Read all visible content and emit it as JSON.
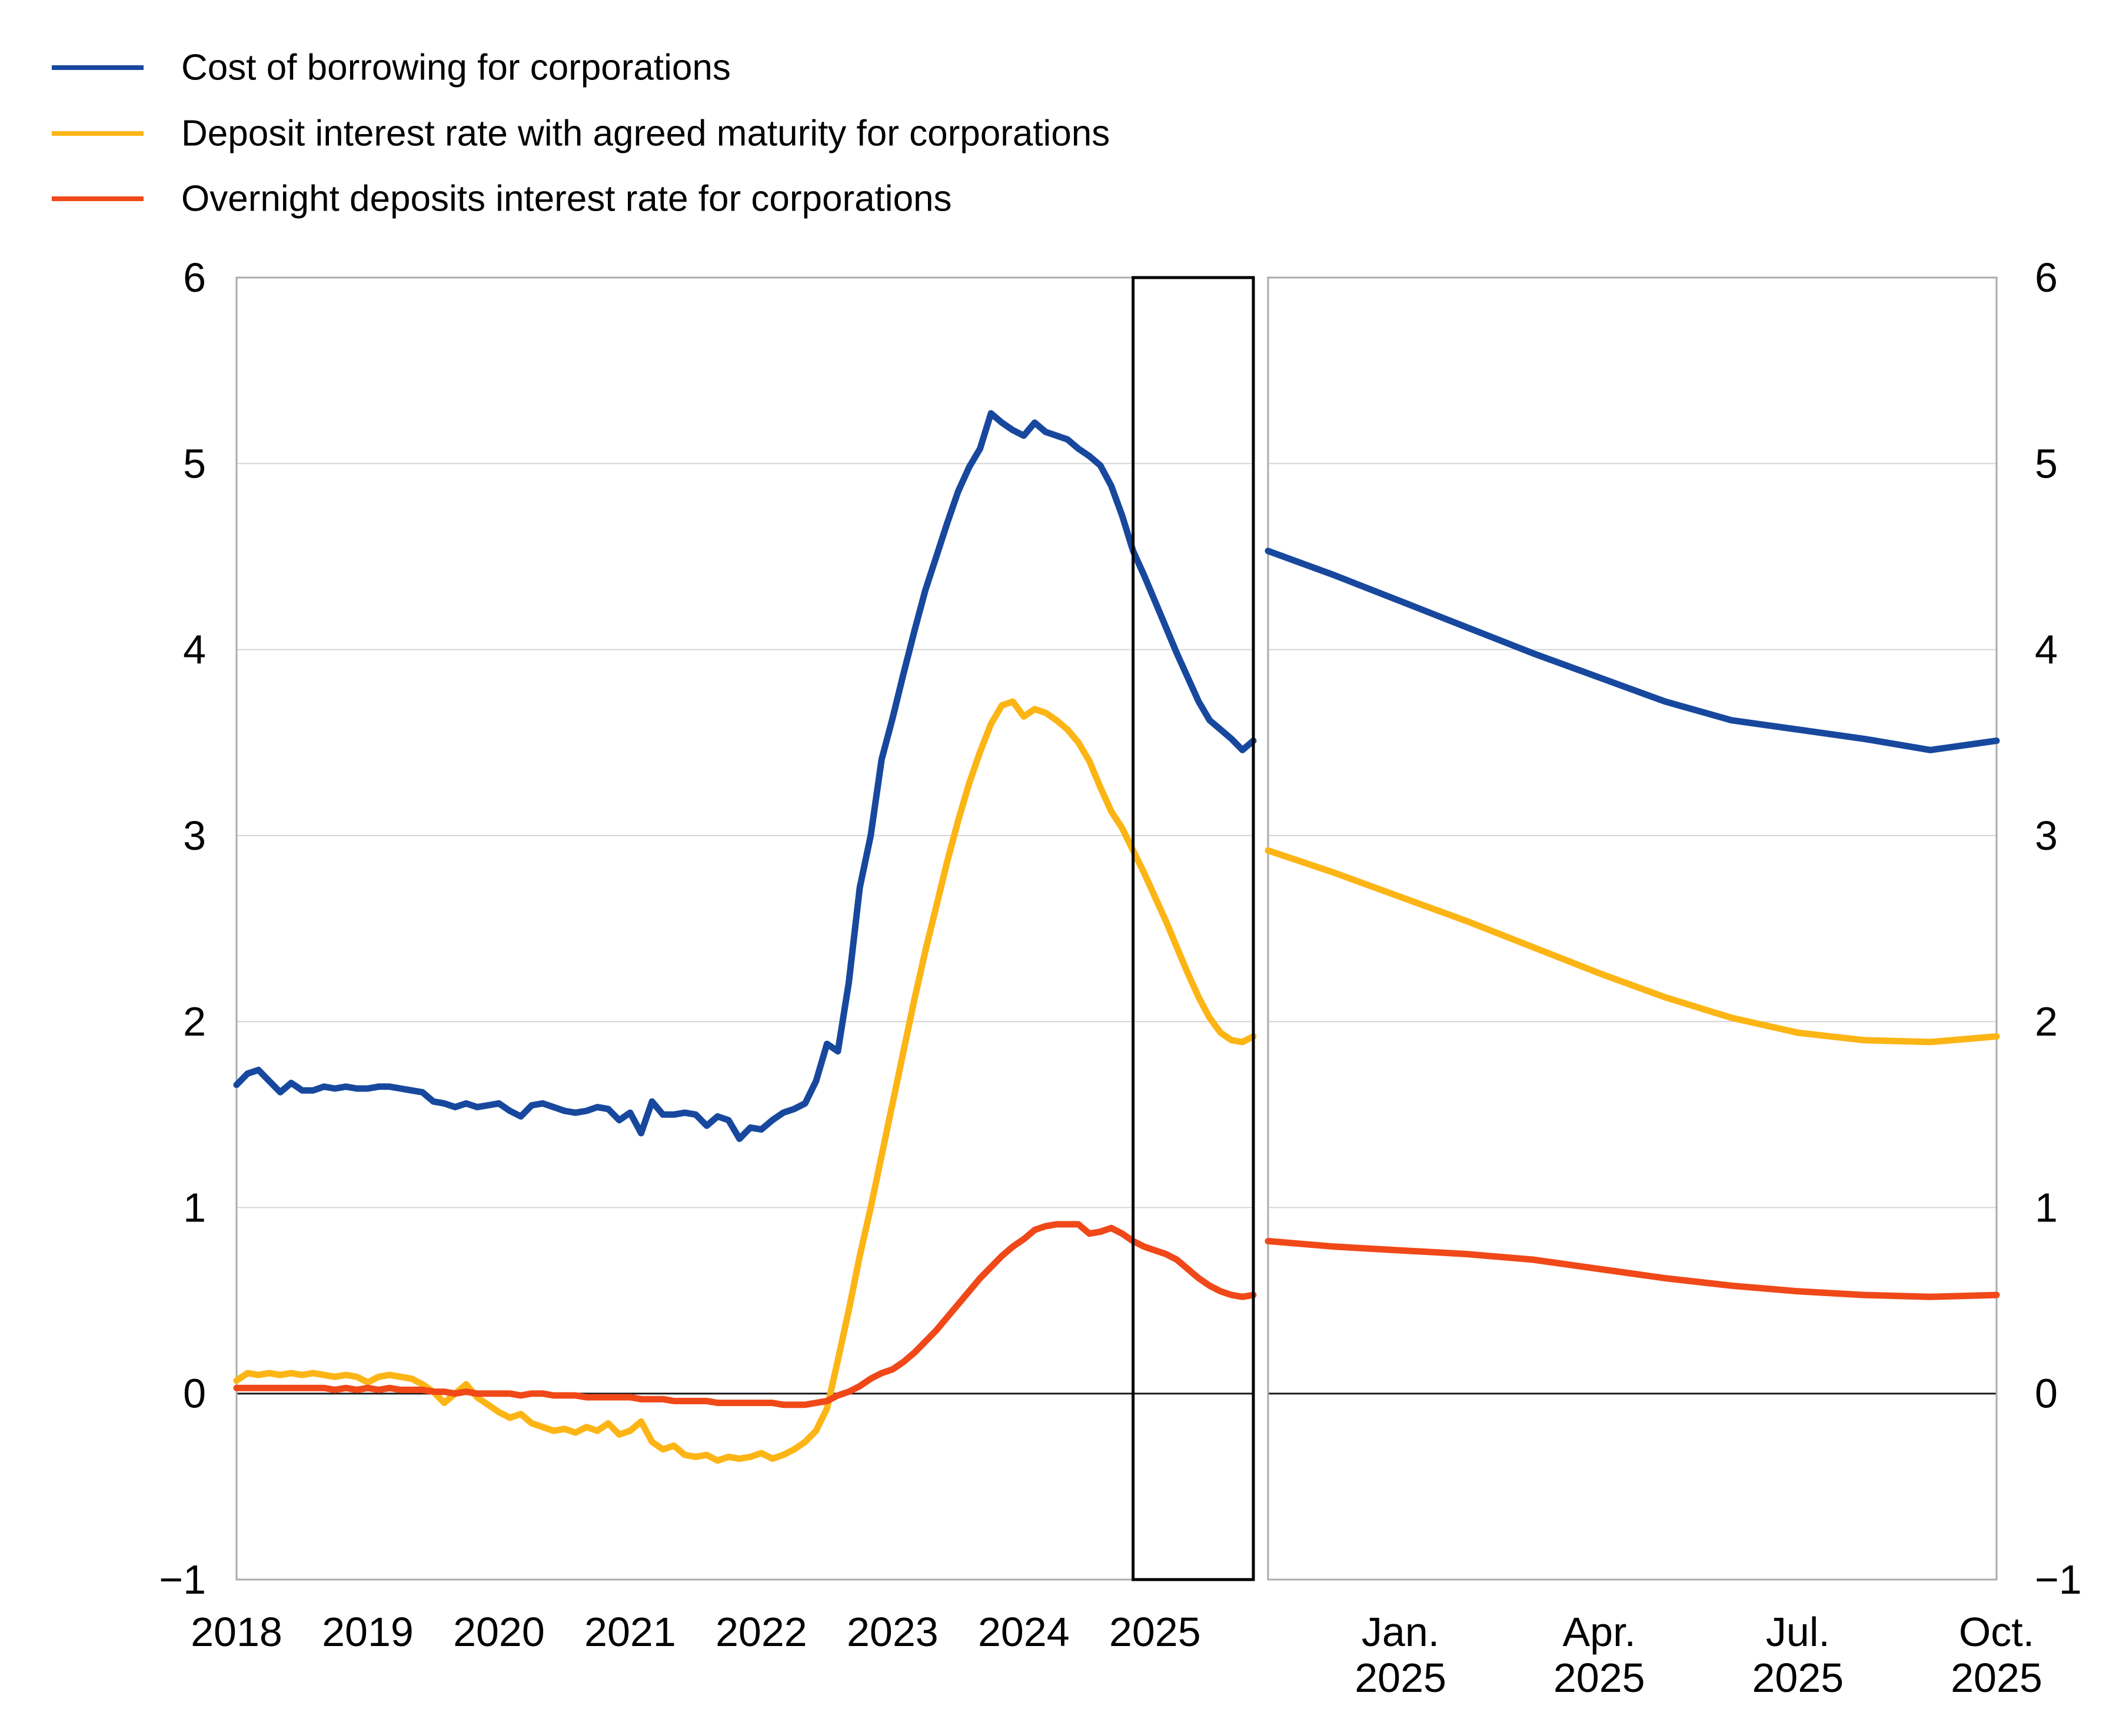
{
  "legend": {
    "items": [
      {
        "label": "Cost of borrowing for corporations",
        "color": "#17489e"
      },
      {
        "label": "Deposit interest rate with agreed maturity for corporations",
        "color": "#fcb515"
      },
      {
        "label": "Overnight deposits interest rate for corporations",
        "color": "#f04818"
      }
    ]
  },
  "axes": {
    "y_tick_labels": [
      "6",
      "5",
      "4",
      "3",
      "2",
      "1",
      "0",
      "−1"
    ],
    "y_tick_values": [
      6,
      5,
      4,
      3,
      2,
      1,
      0,
      -1
    ],
    "y_min": -1,
    "y_max": 6,
    "left_x_ticks": [
      {
        "label": "2018",
        "month_index": 0
      },
      {
        "label": "2019",
        "month_index": 12
      },
      {
        "label": "2020",
        "month_index": 24
      },
      {
        "label": "2021",
        "month_index": 36
      },
      {
        "label": "2022",
        "month_index": 48
      },
      {
        "label": "2023",
        "month_index": 60
      },
      {
        "label": "2024",
        "month_index": 72
      },
      {
        "label": "2025",
        "month_index": 84
      }
    ],
    "right_x_ticks": [
      {
        "line1": "Jan.",
        "line2": "2025",
        "month_index": 2
      },
      {
        "line1": "Apr.",
        "line2": "2025",
        "month_index": 5
      },
      {
        "line1": "Jul.",
        "line2": "2025",
        "month_index": 8
      },
      {
        "line1": "Oct.",
        "line2": "2025",
        "month_index": 11
      }
    ]
  },
  "chart_data": [
    {
      "type": "line",
      "panel": "left",
      "x_start": "2018-01",
      "x_end": "2025-10",
      "x_unit": "month",
      "ylim": [
        -1,
        6
      ],
      "grid": "horizontal",
      "highlight_box_from_index": 82,
      "series": [
        {
          "name": "Cost of borrowing for corporations",
          "color": "#17489e",
          "values": [
            1.66,
            1.72,
            1.74,
            1.68,
            1.62,
            1.67,
            1.63,
            1.63,
            1.65,
            1.64,
            1.65,
            1.64,
            1.64,
            1.65,
            1.65,
            1.64,
            1.63,
            1.62,
            1.57,
            1.56,
            1.54,
            1.56,
            1.54,
            1.55,
            1.56,
            1.52,
            1.49,
            1.55,
            1.56,
            1.54,
            1.52,
            1.51,
            1.52,
            1.54,
            1.53,
            1.47,
            1.51,
            1.4,
            1.57,
            1.5,
            1.5,
            1.51,
            1.5,
            1.44,
            1.49,
            1.47,
            1.37,
            1.43,
            1.42,
            1.47,
            1.51,
            1.53,
            1.56,
            1.68,
            1.88,
            1.84,
            2.21,
            2.72,
            3.0,
            3.41,
            3.63,
            3.87,
            4.1,
            4.32,
            4.5,
            4.68,
            4.85,
            4.98,
            5.08,
            5.27,
            5.22,
            5.18,
            5.15,
            5.22,
            5.17,
            5.15,
            5.13,
            5.08,
            5.04,
            4.99,
            4.88,
            4.72,
            4.53,
            4.4,
            4.26,
            4.12,
            3.98,
            3.85,
            3.72,
            3.62,
            3.57,
            3.52,
            3.46,
            3.51
          ]
        },
        {
          "name": "Deposit interest rate with agreed maturity for corporations",
          "color": "#fcb515",
          "values": [
            0.07,
            0.11,
            0.1,
            0.11,
            0.1,
            0.11,
            0.1,
            0.11,
            0.1,
            0.09,
            0.1,
            0.09,
            0.06,
            0.09,
            0.1,
            0.09,
            0.08,
            0.05,
            0.01,
            -0.05,
            0.0,
            0.05,
            -0.02,
            -0.06,
            -0.1,
            -0.13,
            -0.11,
            -0.16,
            -0.18,
            -0.2,
            -0.19,
            -0.21,
            -0.18,
            -0.2,
            -0.16,
            -0.22,
            -0.2,
            -0.15,
            -0.26,
            -0.3,
            -0.28,
            -0.33,
            -0.34,
            -0.33,
            -0.36,
            -0.34,
            -0.35,
            -0.34,
            -0.32,
            -0.35,
            -0.33,
            -0.3,
            -0.26,
            -0.2,
            -0.08,
            0.18,
            0.45,
            0.74,
            1.0,
            1.28,
            1.56,
            1.84,
            2.12,
            2.38,
            2.62,
            2.86,
            3.08,
            3.28,
            3.45,
            3.6,
            3.7,
            3.72,
            3.64,
            3.68,
            3.66,
            3.62,
            3.57,
            3.5,
            3.4,
            3.26,
            3.13,
            3.04,
            2.92,
            2.8,
            2.67,
            2.54,
            2.4,
            2.26,
            2.13,
            2.02,
            1.94,
            1.9,
            1.89,
            1.92
          ]
        },
        {
          "name": "Overnight deposits interest rate for corporations",
          "color": "#f04818",
          "values": [
            0.03,
            0.03,
            0.03,
            0.03,
            0.03,
            0.03,
            0.03,
            0.03,
            0.03,
            0.02,
            0.03,
            0.02,
            0.03,
            0.02,
            0.03,
            0.02,
            0.02,
            0.02,
            0.01,
            0.01,
            0.0,
            0.01,
            0.0,
            0.0,
            0.0,
            0.0,
            -0.01,
            0.0,
            0.0,
            -0.01,
            -0.01,
            -0.01,
            -0.02,
            -0.02,
            -0.02,
            -0.02,
            -0.02,
            -0.03,
            -0.03,
            -0.03,
            -0.04,
            -0.04,
            -0.04,
            -0.04,
            -0.05,
            -0.05,
            -0.05,
            -0.05,
            -0.05,
            -0.05,
            -0.06,
            -0.06,
            -0.06,
            -0.05,
            -0.04,
            -0.01,
            0.01,
            0.04,
            0.08,
            0.11,
            0.13,
            0.17,
            0.22,
            0.28,
            0.34,
            0.41,
            0.48,
            0.55,
            0.62,
            0.68,
            0.74,
            0.79,
            0.83,
            0.88,
            0.9,
            0.91,
            0.91,
            0.91,
            0.86,
            0.87,
            0.89,
            0.86,
            0.82,
            0.79,
            0.77,
            0.75,
            0.72,
            0.67,
            0.62,
            0.58,
            0.55,
            0.53,
            0.52,
            0.53
          ]
        }
      ]
    },
    {
      "type": "line",
      "panel": "right",
      "x_start": "2024-11",
      "x_end": "2025-10",
      "x_unit": "month",
      "ylim": [
        -1,
        6
      ],
      "grid": "horizontal",
      "series": [
        {
          "name": "Cost of borrowing for corporations",
          "color": "#17489e",
          "values": [
            4.53,
            4.4,
            4.26,
            4.12,
            3.98,
            3.85,
            3.72,
            3.62,
            3.57,
            3.52,
            3.46,
            3.51
          ]
        },
        {
          "name": "Deposit interest rate with agreed maturity for corporations",
          "color": "#fcb515",
          "values": [
            2.92,
            2.8,
            2.67,
            2.54,
            2.4,
            2.26,
            2.13,
            2.02,
            1.94,
            1.9,
            1.89,
            1.92
          ]
        },
        {
          "name": "Overnight deposits interest rate for corporations",
          "color": "#f04818",
          "values": [
            0.82,
            0.79,
            0.77,
            0.75,
            0.72,
            0.67,
            0.62,
            0.58,
            0.55,
            0.53,
            0.52,
            0.53
          ]
        }
      ]
    }
  ],
  "style": {
    "frame_color": "#ababab",
    "grid_color": "#d6d6d6",
    "zero_line_color": "#1a1a1a",
    "highlight_box_color": "#000000",
    "background": "#ffffff"
  }
}
